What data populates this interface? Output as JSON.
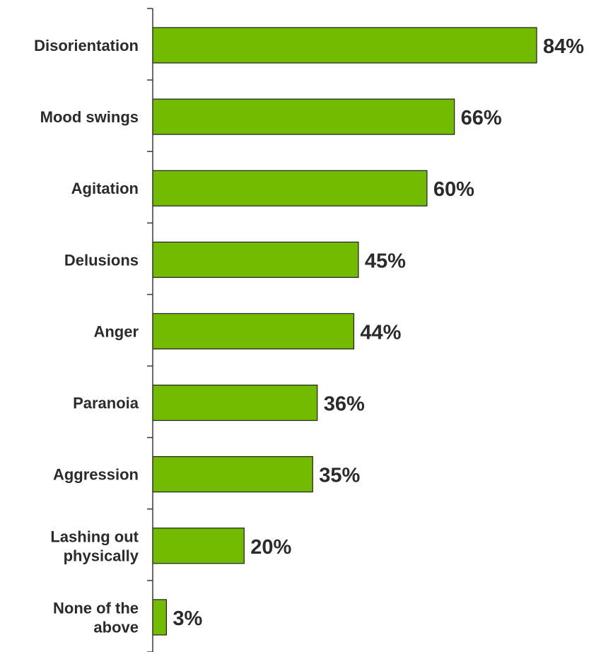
{
  "chart_data": {
    "type": "bar",
    "orientation": "horizontal",
    "categories": [
      "Disorientation",
      "Mood swings",
      "Agitation",
      "Delusions",
      "Anger",
      "Paranoia",
      "Aggression",
      "Lashing out physically",
      "None of the above"
    ],
    "category_label_lines": [
      [
        "Disorientation"
      ],
      [
        "Mood swings"
      ],
      [
        "Agitation"
      ],
      [
        "Delusions"
      ],
      [
        "Anger"
      ],
      [
        "Paranoia"
      ],
      [
        "Aggression"
      ],
      [
        "Lashing out",
        "physically"
      ],
      [
        "None of the",
        "above"
      ]
    ],
    "values": [
      84,
      66,
      60,
      45,
      44,
      36,
      35,
      20,
      3
    ],
    "value_labels": [
      "84%",
      "66%",
      "60%",
      "45%",
      "44%",
      "36%",
      "35%",
      "20%",
      "3%"
    ],
    "xlim": [
      0,
      100
    ],
    "grid": false,
    "legend": "none",
    "colors": {
      "bar_fill": "#72BB00",
      "bar_stroke": "#1f1f1f",
      "axis": "#3a3a3a",
      "text": "#2b2b2b"
    }
  }
}
